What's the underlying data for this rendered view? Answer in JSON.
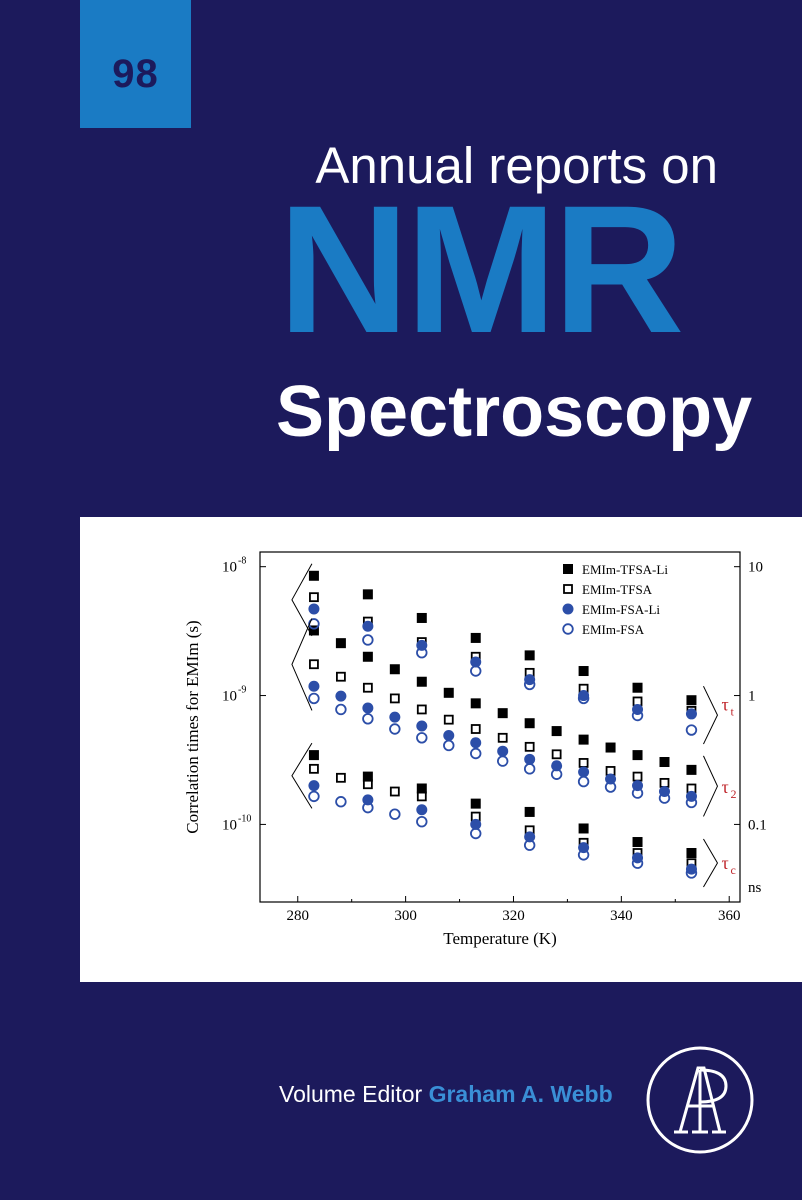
{
  "cover": {
    "volume": "98",
    "title_line1": "Annual reports on",
    "title_line2": "NMR",
    "title_line3": "Spectroscopy",
    "editor_label": "Volume Editor",
    "editor_name": "Graham A. Webb",
    "publisher_logo": "AP",
    "colors": {
      "background": "#1c1a5c",
      "accent": "#1a7bc4",
      "text": "#ffffff"
    }
  },
  "chart_data": {
    "type": "scatter",
    "xlabel": "Temperature (K)",
    "ylabel": "Correlation times for EMIm (s)",
    "xlim": [
      273,
      362
    ],
    "ylim": [
      2.5e-11,
      1.3e-08
    ],
    "yscale": "log",
    "x_ticks": [
      "280",
      "300",
      "320",
      "340",
      "360"
    ],
    "y_ticks_left": [
      {
        "value": 1e-08,
        "label": "10",
        "sup": "-8"
      },
      {
        "value": 1e-09,
        "label": "10",
        "sup": "-9"
      },
      {
        "value": 1e-10,
        "label": "10",
        "sup": "-10"
      }
    ],
    "y_ticks_right": [
      {
        "value": 1e-08,
        "label": "10"
      },
      {
        "value": 1e-09,
        "label": "1"
      },
      {
        "value": 1e-10,
        "label": "0.1"
      }
    ],
    "right_unit": "ns",
    "legend_position": "top-right",
    "series": [
      {
        "name": "EMIm-TFSA-Li",
        "marker": "filled-square",
        "color": "#000000",
        "points": [
          [
            283,
            8.5e-09
          ],
          [
            293,
            6.1e-09
          ],
          [
            303,
            4e-09
          ],
          [
            313,
            2.8e-09
          ],
          [
            323,
            2.05e-09
          ],
          [
            333,
            1.55e-09
          ],
          [
            343,
            1.15e-09
          ],
          [
            353,
            9.2e-10
          ],
          [
            283,
            3.2e-09
          ],
          [
            288,
            2.55e-09
          ],
          [
            293,
            2e-09
          ],
          [
            298,
            1.6e-09
          ],
          [
            303,
            1.28e-09
          ],
          [
            308,
            1.05e-09
          ],
          [
            313,
            8.7e-10
          ],
          [
            318,
            7.3e-10
          ],
          [
            323,
            6.1e-10
          ],
          [
            328,
            5.3e-10
          ],
          [
            333,
            4.55e-10
          ],
          [
            338,
            3.95e-10
          ],
          [
            343,
            3.45e-10
          ],
          [
            348,
            3.05e-10
          ],
          [
            353,
            2.65e-10
          ],
          [
            283,
            3.45e-10
          ],
          [
            293,
            2.35e-10
          ],
          [
            303,
            1.9e-10
          ],
          [
            313,
            1.45e-10
          ],
          [
            323,
            1.25e-10
          ],
          [
            333,
            9.3e-11
          ],
          [
            343,
            7.3e-11
          ],
          [
            353,
            6e-11
          ]
        ]
      },
      {
        "name": "EMIm-TFSA",
        "marker": "open-square",
        "color": "#000000",
        "points": [
          [
            283,
            5.8e-09
          ],
          [
            293,
            3.75e-09
          ],
          [
            303,
            2.6e-09
          ],
          [
            313,
            2e-09
          ],
          [
            323,
            1.5e-09
          ],
          [
            333,
            1.13e-09
          ],
          [
            343,
            9e-10
          ],
          [
            353,
            7.6e-10
          ],
          [
            283,
            1.75e-09
          ],
          [
            288,
            1.4e-09
          ],
          [
            293,
            1.15e-09
          ],
          [
            298,
            9.5e-10
          ],
          [
            303,
            7.8e-10
          ],
          [
            308,
            6.5e-10
          ],
          [
            313,
            5.5e-10
          ],
          [
            318,
            4.7e-10
          ],
          [
            323,
            4e-10
          ],
          [
            328,
            3.5e-10
          ],
          [
            333,
            3e-10
          ],
          [
            338,
            2.6e-10
          ],
          [
            343,
            2.35e-10
          ],
          [
            348,
            2.1e-10
          ],
          [
            353,
            1.9e-10
          ],
          [
            283,
            2.7e-10
          ],
          [
            288,
            2.3e-10
          ],
          [
            293,
            2.05e-10
          ],
          [
            298,
            1.8e-10
          ],
          [
            303,
            1.65e-10
          ],
          [
            313,
            1.15e-10
          ],
          [
            323,
            9e-11
          ],
          [
            333,
            7.2e-11
          ],
          [
            343,
            6e-11
          ],
          [
            353,
            5e-11
          ]
        ]
      },
      {
        "name": "EMIm-FSA-Li",
        "marker": "filled-circle",
        "color": "#2c4ea8",
        "points": [
          [
            283,
            4.7e-09
          ],
          [
            293,
            3.45e-09
          ],
          [
            303,
            2.45e-09
          ],
          [
            313,
            1.82e-09
          ],
          [
            323,
            1.33e-09
          ],
          [
            333,
            1e-09
          ],
          [
            343,
            7.8e-10
          ],
          [
            353,
            7.2e-10
          ],
          [
            283,
            1.18e-09
          ],
          [
            288,
            9.9e-10
          ],
          [
            293,
            8e-10
          ],
          [
            298,
            6.8e-10
          ],
          [
            303,
            5.8e-10
          ],
          [
            308,
            4.9e-10
          ],
          [
            313,
            4.3e-10
          ],
          [
            318,
            3.7e-10
          ],
          [
            323,
            3.2e-10
          ],
          [
            328,
            2.85e-10
          ],
          [
            333,
            2.55e-10
          ],
          [
            338,
            2.25e-10
          ],
          [
            343,
            2e-10
          ],
          [
            348,
            1.8e-10
          ],
          [
            353,
            1.65e-10
          ],
          [
            283,
            2e-10
          ],
          [
            293,
            1.55e-10
          ],
          [
            303,
            1.3e-10
          ],
          [
            313,
            1e-10
          ],
          [
            323,
            8e-11
          ],
          [
            333,
            6.6e-11
          ],
          [
            343,
            5.5e-11
          ],
          [
            353,
            4.5e-11
          ]
        ]
      },
      {
        "name": "EMIm-FSA",
        "marker": "open-circle",
        "color": "#2c4ea8",
        "points": [
          [
            283,
            3.6e-09
          ],
          [
            293,
            2.7e-09
          ],
          [
            303,
            2.15e-09
          ],
          [
            313,
            1.55e-09
          ],
          [
            323,
            1.22e-09
          ],
          [
            333,
            9.5e-10
          ],
          [
            343,
            7e-10
          ],
          [
            353,
            5.4e-10
          ],
          [
            283,
            9.5e-10
          ],
          [
            288,
            7.8e-10
          ],
          [
            293,
            6.6e-10
          ],
          [
            298,
            5.5e-10
          ],
          [
            303,
            4.7e-10
          ],
          [
            308,
            4.1e-10
          ],
          [
            313,
            3.55e-10
          ],
          [
            318,
            3.1e-10
          ],
          [
            323,
            2.7e-10
          ],
          [
            328,
            2.45e-10
          ],
          [
            333,
            2.15e-10
          ],
          [
            338,
            1.95e-10
          ],
          [
            343,
            1.75e-10
          ],
          [
            348,
            1.6e-10
          ],
          [
            353,
            1.48e-10
          ],
          [
            283,
            1.65e-10
          ],
          [
            288,
            1.5e-10
          ],
          [
            293,
            1.35e-10
          ],
          [
            298,
            1.2e-10
          ],
          [
            303,
            1.05e-10
          ],
          [
            313,
            8.5e-11
          ],
          [
            323,
            6.9e-11
          ],
          [
            333,
            5.8e-11
          ],
          [
            343,
            5e-11
          ],
          [
            353,
            4.2e-11
          ]
        ]
      }
    ],
    "annotations": [
      {
        "label": "τ",
        "sub": "t",
        "value": 8.5e-10
      },
      {
        "label": "τ",
        "sub": "2",
        "value": 1.95e-10
      },
      {
        "label": "τ",
        "sub": "c",
        "value": 5e-11
      }
    ],
    "annotation_color": "#c0272d"
  }
}
